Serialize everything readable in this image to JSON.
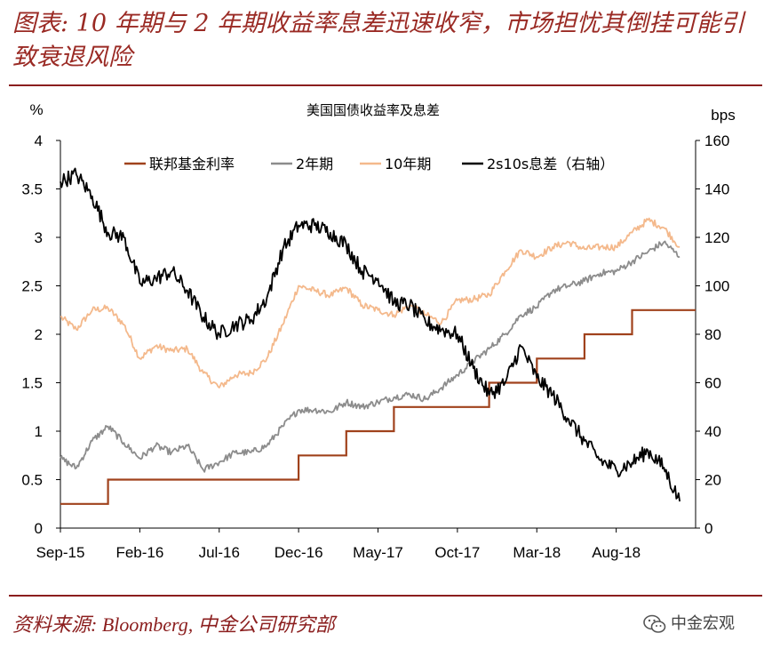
{
  "page": {
    "title": "图表: 10 年期与 2 年期收益率息差迅速收窄，市场担忧其倒挂可能引致衰退风险",
    "source": "资料来源: Bloomberg, 中金公司研究部",
    "watermark": "中金宏观",
    "watermark_icon": "wechat-icon"
  },
  "chart_data": {
    "type": "line",
    "title": "美国国债收益率及息差",
    "left_axis": {
      "unit": "%",
      "ylim": [
        0,
        4
      ],
      "ticks": [
        "0",
        "0.5",
        "1",
        "1.5",
        "2",
        "2.5",
        "3",
        "3.5",
        "4"
      ]
    },
    "right_axis": {
      "unit": "bps",
      "ylim": [
        0,
        160
      ],
      "ticks": [
        "0",
        "20",
        "40",
        "60",
        "80",
        "100",
        "120",
        "140",
        "160"
      ]
    },
    "x_ticks": [
      "Sep-15",
      "Feb-16",
      "Jul-16",
      "Dec-16",
      "May-17",
      "Oct-17",
      "Mar-18",
      "Aug-18"
    ],
    "x_range": [
      "2015-09",
      "2019-01"
    ],
    "grid": false,
    "legend_position": "top",
    "series": [
      {
        "name": "联邦基金利率",
        "color": "#a0421c",
        "axis": "left",
        "step": true,
        "points": [
          [
            "2015-09",
            0.25
          ],
          [
            "2015-12",
            0.25
          ],
          [
            "2015-12",
            0.5
          ],
          [
            "2016-12",
            0.5
          ],
          [
            "2016-12",
            0.75
          ],
          [
            "2017-03",
            0.75
          ],
          [
            "2017-03",
            1.0
          ],
          [
            "2017-06",
            1.0
          ],
          [
            "2017-06",
            1.25
          ],
          [
            "2017-12",
            1.25
          ],
          [
            "2017-12",
            1.5
          ],
          [
            "2018-03",
            1.5
          ],
          [
            "2018-03",
            1.75
          ],
          [
            "2018-06",
            1.75
          ],
          [
            "2018-06",
            2.0
          ],
          [
            "2018-09",
            2.0
          ],
          [
            "2018-09",
            2.25
          ],
          [
            "2019-01",
            2.25
          ]
        ]
      },
      {
        "name": "2年期",
        "color": "#8c8c8c",
        "axis": "left",
        "points": [
          [
            "2015-09",
            0.72
          ],
          [
            "2015-10",
            0.62
          ],
          [
            "2015-11",
            0.9
          ],
          [
            "2015-12",
            1.05
          ],
          [
            "2016-01",
            0.88
          ],
          [
            "2016-02",
            0.72
          ],
          [
            "2016-03",
            0.85
          ],
          [
            "2016-04",
            0.78
          ],
          [
            "2016-05",
            0.85
          ],
          [
            "2016-06",
            0.6
          ],
          [
            "2016-07",
            0.68
          ],
          [
            "2016-08",
            0.78
          ],
          [
            "2016-09",
            0.78
          ],
          [
            "2016-10",
            0.85
          ],
          [
            "2016-11",
            1.05
          ],
          [
            "2016-12",
            1.22
          ],
          [
            "2017-01",
            1.22
          ],
          [
            "2017-02",
            1.2
          ],
          [
            "2017-03",
            1.3
          ],
          [
            "2017-04",
            1.25
          ],
          [
            "2017-05",
            1.3
          ],
          [
            "2017-06",
            1.35
          ],
          [
            "2017-07",
            1.38
          ],
          [
            "2017-08",
            1.33
          ],
          [
            "2017-09",
            1.45
          ],
          [
            "2017-10",
            1.58
          ],
          [
            "2017-11",
            1.72
          ],
          [
            "2017-12",
            1.85
          ],
          [
            "2018-01",
            2.0
          ],
          [
            "2018-02",
            2.2
          ],
          [
            "2018-03",
            2.28
          ],
          [
            "2018-04",
            2.45
          ],
          [
            "2018-05",
            2.5
          ],
          [
            "2018-06",
            2.55
          ],
          [
            "2018-07",
            2.63
          ],
          [
            "2018-08",
            2.65
          ],
          [
            "2018-09",
            2.75
          ],
          [
            "2018-10",
            2.85
          ],
          [
            "2018-11",
            2.95
          ],
          [
            "2018-12",
            2.8
          ]
        ]
      },
      {
        "name": "10年期",
        "color": "#f4b98c",
        "axis": "left",
        "points": [
          [
            "2015-09",
            2.18
          ],
          [
            "2015-10",
            2.05
          ],
          [
            "2015-11",
            2.25
          ],
          [
            "2015-12",
            2.27
          ],
          [
            "2016-01",
            2.1
          ],
          [
            "2016-02",
            1.75
          ],
          [
            "2016-03",
            1.88
          ],
          [
            "2016-04",
            1.83
          ],
          [
            "2016-05",
            1.85
          ],
          [
            "2016-06",
            1.6
          ],
          [
            "2016-07",
            1.45
          ],
          [
            "2016-08",
            1.58
          ],
          [
            "2016-09",
            1.6
          ],
          [
            "2016-10",
            1.75
          ],
          [
            "2016-11",
            2.1
          ],
          [
            "2016-12",
            2.5
          ],
          [
            "2017-01",
            2.45
          ],
          [
            "2017-02",
            2.4
          ],
          [
            "2017-03",
            2.48
          ],
          [
            "2017-04",
            2.3
          ],
          [
            "2017-05",
            2.25
          ],
          [
            "2017-06",
            2.2
          ],
          [
            "2017-07",
            2.3
          ],
          [
            "2017-08",
            2.2
          ],
          [
            "2017-09",
            2.12
          ],
          [
            "2017-10",
            2.35
          ],
          [
            "2017-11",
            2.36
          ],
          [
            "2017-12",
            2.41
          ],
          [
            "2018-01",
            2.65
          ],
          [
            "2018-02",
            2.87
          ],
          [
            "2018-03",
            2.8
          ],
          [
            "2018-04",
            2.9
          ],
          [
            "2018-05",
            2.95
          ],
          [
            "2018-06",
            2.88
          ],
          [
            "2018-07",
            2.9
          ],
          [
            "2018-08",
            2.9
          ],
          [
            "2018-09",
            3.05
          ],
          [
            "2018-10",
            3.18
          ],
          [
            "2018-11",
            3.1
          ],
          [
            "2018-12",
            2.9
          ]
        ]
      },
      {
        "name": "2s10s息差（右轴）",
        "color": "#000000",
        "axis": "right",
        "points": [
          [
            "2015-09",
            143
          ],
          [
            "2015-10",
            146
          ],
          [
            "2015-11",
            137
          ],
          [
            "2015-12",
            122
          ],
          [
            "2016-01",
            120
          ],
          [
            "2016-02",
            101
          ],
          [
            "2016-03",
            103
          ],
          [
            "2016-04",
            106
          ],
          [
            "2016-05",
            98
          ],
          [
            "2016-06",
            87
          ],
          [
            "2016-07",
            80
          ],
          [
            "2016-08",
            84
          ],
          [
            "2016-09",
            86
          ],
          [
            "2016-10",
            95
          ],
          [
            "2016-11",
            115
          ],
          [
            "2016-12",
            125
          ],
          [
            "2017-01",
            125
          ],
          [
            "2017-02",
            122
          ],
          [
            "2017-03",
            117
          ],
          [
            "2017-04",
            106
          ],
          [
            "2017-05",
            103
          ],
          [
            "2017-06",
            93
          ],
          [
            "2017-07",
            92
          ],
          [
            "2017-08",
            85
          ],
          [
            "2017-09",
            82
          ],
          [
            "2017-10",
            80
          ],
          [
            "2017-11",
            66
          ],
          [
            "2017-12",
            55
          ],
          [
            "2018-01",
            60
          ],
          [
            "2018-02",
            75
          ],
          [
            "2018-03",
            62
          ],
          [
            "2018-04",
            55
          ],
          [
            "2018-05",
            45
          ],
          [
            "2018-06",
            36
          ],
          [
            "2018-07",
            28
          ],
          [
            "2018-08",
            24
          ],
          [
            "2018-09",
            27
          ],
          [
            "2018-10",
            32
          ],
          [
            "2018-11",
            25
          ],
          [
            "2018-12",
            11
          ]
        ]
      }
    ]
  }
}
